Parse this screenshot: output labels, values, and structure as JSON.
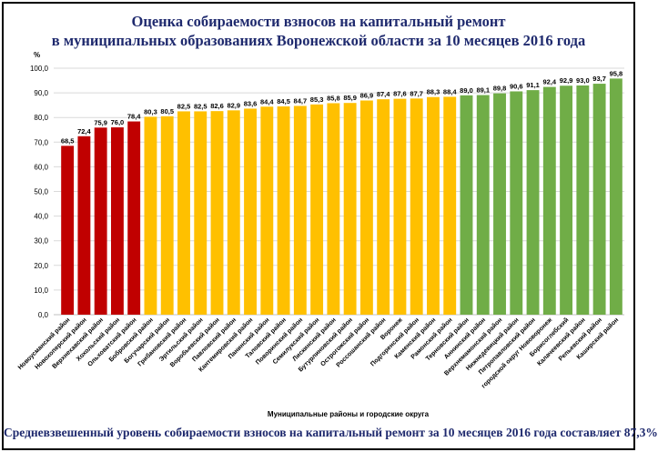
{
  "title_line1": "Оценка собираемости взносов на капитальный ремонт",
  "title_line2": "в муниципальных образованиях Воронежской области за 10 месяцев 2016 года",
  "footer": "Средневзвешенный уровень собираемости взносов на капитальный ремонт за 10 месяцев 2016 года составляет 87,3%",
  "colors": {
    "red": "#c00000",
    "yellow": "#ffc000",
    "green": "#70ad47",
    "grid": "#d9d9d9",
    "title": "#1f2a6e"
  },
  "chart_data": {
    "type": "bar",
    "title": "Оценка собираемости взносов на капитальный ремонт в муниципальных образованиях Воронежской области за 10 месяцев 2016 года",
    "ylabel": "%",
    "xlabel": "Муниципальные районы и городские округа",
    "ylim": [
      0,
      100
    ],
    "yticks": [
      "0,0",
      "10,0",
      "20,0",
      "30,0",
      "40,0",
      "50,0",
      "60,0",
      "70,0",
      "80,0",
      "90,0",
      "100,0"
    ],
    "grid": true,
    "categories": [
      "Новоусманский район",
      "Новохоперский район",
      "Верхнехавский район",
      "Хохольский район",
      "Ольховатский район",
      "Бобровский район",
      "Богучарский район",
      "Грибановский район",
      "Эртильский район",
      "Воробьевский район",
      "Павловский район",
      "Кантемировский район",
      "Панинский район",
      "Таловский район",
      "Поворинский район",
      "Семилукский район",
      "Лискинский район",
      "Бутурлиновский район",
      "Острогожский район",
      "Россошанский район",
      "Воронеж",
      "Подгоренский район",
      "Каменский район",
      "Рамонский район",
      "Терновский район",
      "Аннинский район",
      "Верхнемамонский район",
      "Нижнедевицкий район",
      "Петропавловский район",
      "городской округ Нововоронеж",
      "Борисоглебский",
      "Калачеевский район",
      "Репьевский район",
      "Каширский район"
    ],
    "values": [
      68.5,
      72.4,
      75.9,
      76.0,
      78.4,
      80.3,
      80.5,
      82.5,
      82.5,
      82.6,
      82.9,
      83.6,
      84.4,
      84.5,
      84.7,
      85.3,
      85.8,
      85.9,
      86.9,
      87.4,
      87.6,
      87.7,
      88.3,
      88.4,
      89.0,
      89.1,
      89.8,
      90.6,
      91.1,
      92.4,
      92.9,
      93.0,
      93.7,
      95.8
    ],
    "value_labels": [
      "68,5",
      "72,4",
      "75,9",
      "76,0",
      "78,4",
      "80,3",
      "80,5",
      "82,5",
      "82,5",
      "82,6",
      "82,9",
      "83,6",
      "84,4",
      "84,5",
      "84,7",
      "85,3",
      "85,8",
      "85,9",
      "86,9",
      "87,4",
      "87,6",
      "87,7",
      "88,3",
      "88,4",
      "89,0",
      "89,1",
      "89,8",
      "90,6",
      "91,1",
      "92,4",
      "92,9",
      "93,0",
      "93,7",
      "95,8"
    ],
    "color_groups": [
      "red",
      "red",
      "red",
      "red",
      "red",
      "yellow",
      "yellow",
      "yellow",
      "yellow",
      "yellow",
      "yellow",
      "yellow",
      "yellow",
      "yellow",
      "yellow",
      "yellow",
      "yellow",
      "yellow",
      "yellow",
      "yellow",
      "yellow",
      "yellow",
      "yellow",
      "yellow",
      "green",
      "green",
      "green",
      "green",
      "green",
      "green",
      "green",
      "green",
      "green",
      "green"
    ]
  }
}
